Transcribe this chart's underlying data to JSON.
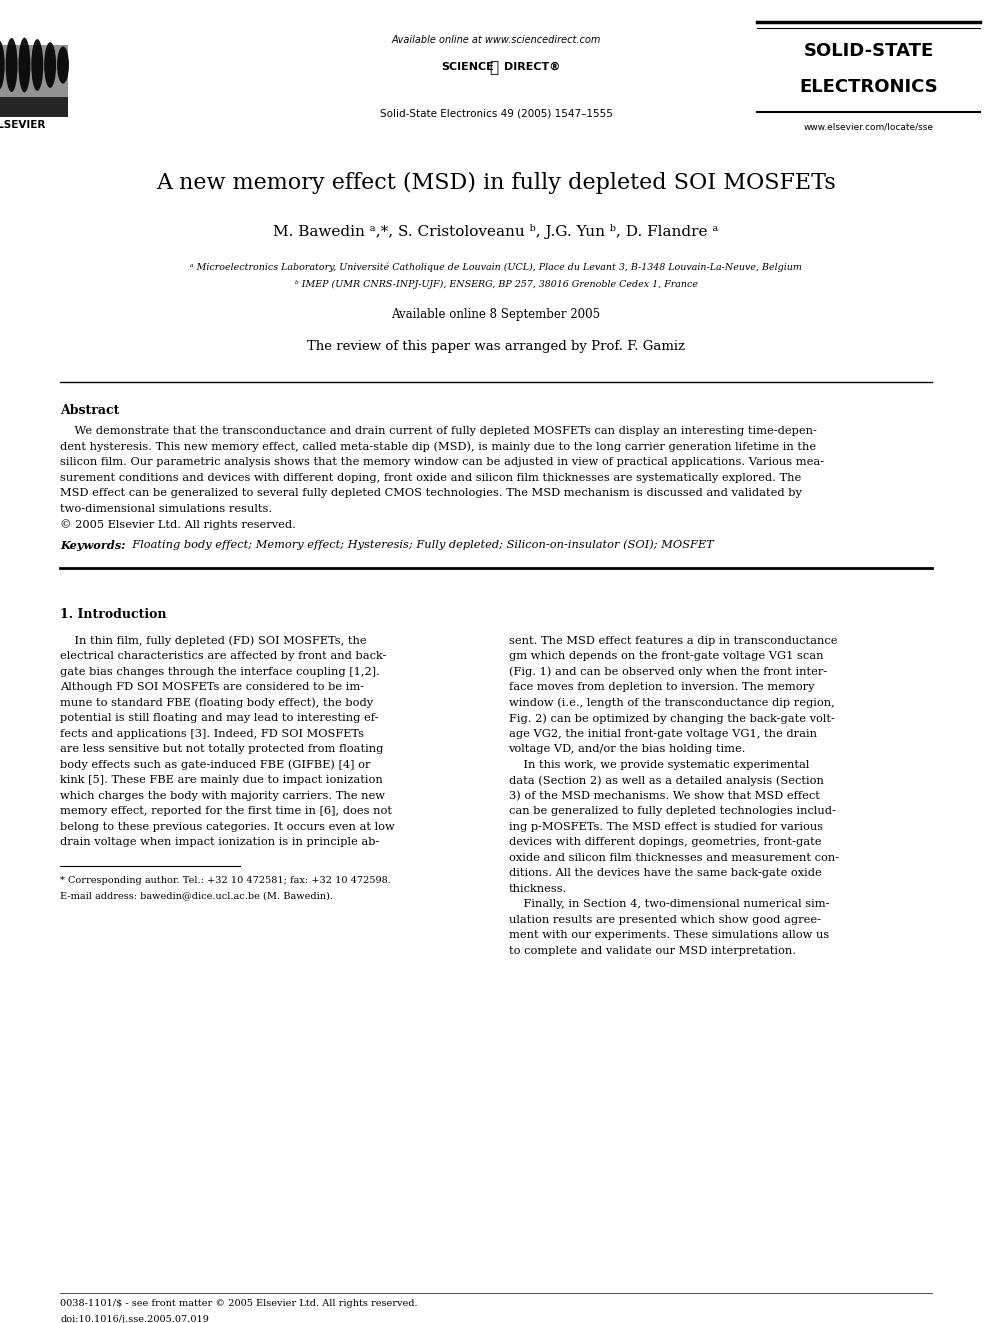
{
  "bg_color": "#ffffff",
  "page_width": 9.92,
  "page_height": 13.23,
  "header_available_online": "Available online at www.sciencedirect.com",
  "header_journal_ref": "Solid-State Electronics 49 (2005) 1547–1555",
  "journal_name1": "SOLID-STATE",
  "journal_name2": "ELECTRONICS",
  "journal_website": "www.elsevier.com/locate/sse",
  "title": "A new memory effect (MSD) in fully depleted SOI MOSFETs",
  "authors": "M. Bawedin ᵃ,*, S. Cristoloveanu ᵇ, J.G. Yun ᵇ, D. Flandre ᵃ",
  "affil1": "ᵃ Microelectronics Laboratory, Université Catholique de Louvain (UCL), Place du Levant 3, B-1348 Louvain-La-Neuve, Belgium",
  "affil2": "ᵇ IMEP (UMR CNRS-INPJ-UJF), ENSERG, BP 257, 38016 Grenoble Cedex 1, France",
  "available_online_date": "Available online 8 September 2005",
  "review_note": "The review of this paper was arranged by Prof. F. Gamiz",
  "abstract_title": "Abstract",
  "abstract_lines": [
    "    We demonstrate that the transconductance and drain current of fully depleted MOSFETs can display an interesting time-depen-",
    "dent hysteresis. This new memory effect, called meta-stable dip (MSD), is mainly due to the long carrier generation lifetime in the",
    "silicon film. Our parametric analysis shows that the memory window can be adjusted in view of practical applications. Various mea-",
    "surement conditions and devices with different doping, front oxide and silicon film thicknesses are systematically explored. The",
    "MSD effect can be generalized to several fully depleted CMOS technologies. The MSD mechanism is discussed and validated by",
    "two-dimensional simulations results.",
    "© 2005 Elsevier Ltd. All rights reserved."
  ],
  "keywords_bold": "Keywords:",
  "keywords_text": "  Floating body effect; Memory effect; Hysteresis; Fully depleted; Silicon-on-insulator (SOI); MOSFET",
  "section1_title": "1. Introduction",
  "col1_lines": [
    "    In thin film, fully depleted (FD) SOI MOSFETs, the",
    "electrical characteristics are affected by front and back-",
    "gate bias changes through the interface coupling [1,2].",
    "Although FD SOI MOSFETs are considered to be im-",
    "mune to standard FBE (floating body effect), the body",
    "potential is still floating and may lead to interesting ef-",
    "fects and applications [3]. Indeed, FD SOI MOSFETs",
    "are less sensitive but not totally protected from floating",
    "body effects such as gate-induced FBE (GIFBE) [4] or",
    "kink [5]. These FBE are mainly due to impact ionization",
    "which charges the body with majority carriers. The new",
    "memory effect, reported for the first time in [6], does not",
    "belong to these previous categories. It occurs even at low",
    "drain voltage when impact ionization is in principle ab-"
  ],
  "col2_lines": [
    "sent. The MSD effect features a dip in transconductance",
    "gm which depends on the front-gate voltage VG1 scan",
    "(Fig. 1) and can be observed only when the front inter-",
    "face moves from depletion to inversion. The memory",
    "window (i.e., length of the transconductance dip region,",
    "Fig. 2) can be optimized by changing the back-gate volt-",
    "age VG2, the initial front-gate voltage VG1, the drain",
    "voltage VD, and/or the bias holding time.",
    "    In this work, we provide systematic experimental",
    "data (Section 2) as well as a detailed analysis (Section",
    "3) of the MSD mechanisms. We show that MSD effect",
    "can be generalized to fully depleted technologies includ-",
    "ing p-MOSFETs. The MSD effect is studied for various",
    "devices with different dopings, geometries, front-gate",
    "oxide and silicon film thicknesses and measurement con-",
    "ditions. All the devices have the same back-gate oxide",
    "thickness.",
    "    Finally, in Section 4, two-dimensional numerical sim-",
    "ulation results are presented which show good agree-",
    "ment with our experiments. These simulations allow us",
    "to complete and validate our MSD interpretation."
  ],
  "footnote_line1": "* Corresponding author. Tel.: +32 10 472581; fax: +32 10 472598.",
  "footnote_line2": "E-mail address: bawedin@dice.ucl.ac.be (M. Bawedin).",
  "bottom_line1": "0038-1101/$ - see front matter © 2005 Elsevier Ltd. All rights reserved.",
  "bottom_line2": "doi:10.1016/j.sse.2005.07.019"
}
